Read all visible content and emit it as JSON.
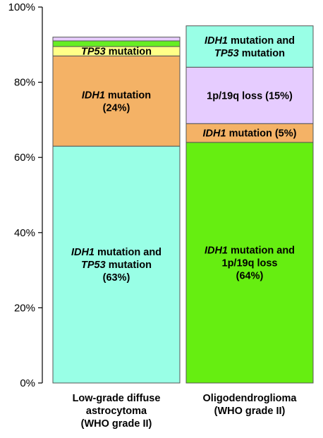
{
  "chart_data": {
    "type": "bar",
    "stacked": true,
    "title": "",
    "xlabel": "",
    "ylabel": "",
    "ylim": [
      0,
      100
    ],
    "yticks": [
      "0%",
      "20%",
      "40%",
      "60%",
      "80%",
      "100%"
    ],
    "grid": false,
    "legend": "none",
    "categories": [
      {
        "lines": [
          "Low-grade diffuse",
          "astrocytoma",
          "(WHO grade II)"
        ]
      },
      {
        "lines": [
          "Oligodendroglioma",
          "(WHO grade II)"
        ]
      }
    ],
    "bars": [
      {
        "segments": [
          {
            "value": 63,
            "color": "#99ffe6",
            "label_lines": [
              [
                {
                  "text": "IDH1",
                  "italic": true
                },
                {
                  "text": " mutation and",
                  "italic": false
                }
              ],
              [
                {
                  "text": "TP53",
                  "italic": true
                },
                {
                  "text": " mutation",
                  "italic": false
                }
              ],
              [
                {
                  "text": "(63%)",
                  "italic": false
                }
              ]
            ]
          },
          {
            "value": 24,
            "color": "#f4b266",
            "label_lines": [
              [
                {
                  "text": "IDH1",
                  "italic": true
                },
                {
                  "text": " mutation",
                  "italic": false
                }
              ],
              [
                {
                  "text": "(24%)",
                  "italic": false
                }
              ]
            ]
          },
          {
            "value": 2.5,
            "color": "#ffff88",
            "label_lines": [
              [
                {
                  "text": "TP53",
                  "italic": true
                },
                {
                  "text": " mutation",
                  "italic": false
                }
              ]
            ]
          },
          {
            "value": 1.5,
            "color": "#66ee22",
            "label_lines": []
          },
          {
            "value": 1,
            "color": "#e6ccff",
            "label_lines": []
          }
        ]
      },
      {
        "segments": [
          {
            "value": 64,
            "color": "#66ee11",
            "label_lines": [
              [
                {
                  "text": "IDH1",
                  "italic": true
                },
                {
                  "text": " mutation and",
                  "italic": false
                }
              ],
              [
                {
                  "text": "1p/19q loss",
                  "italic": false
                }
              ],
              [
                {
                  "text": "(64%)",
                  "italic": false
                }
              ]
            ]
          },
          {
            "value": 5,
            "color": "#f4b266",
            "label_lines": [
              [
                {
                  "text": "IDH1",
                  "italic": true
                },
                {
                  "text": " mutation (5%)",
                  "italic": false
                }
              ]
            ]
          },
          {
            "value": 15,
            "color": "#e6ccff",
            "label_lines": [
              [
                {
                  "text": "1p/19q loss (15%)",
                  "italic": false
                }
              ]
            ]
          },
          {
            "value": 11,
            "color": "#99ffe6",
            "label_lines": [
              [
                {
                  "text": "IDH1",
                  "italic": true
                },
                {
                  "text": " mutation and",
                  "italic": false
                }
              ],
              [
                {
                  "text": "TP53",
                  "italic": true
                },
                {
                  "text": " mutation",
                  "italic": false
                }
              ]
            ]
          }
        ]
      }
    ]
  }
}
